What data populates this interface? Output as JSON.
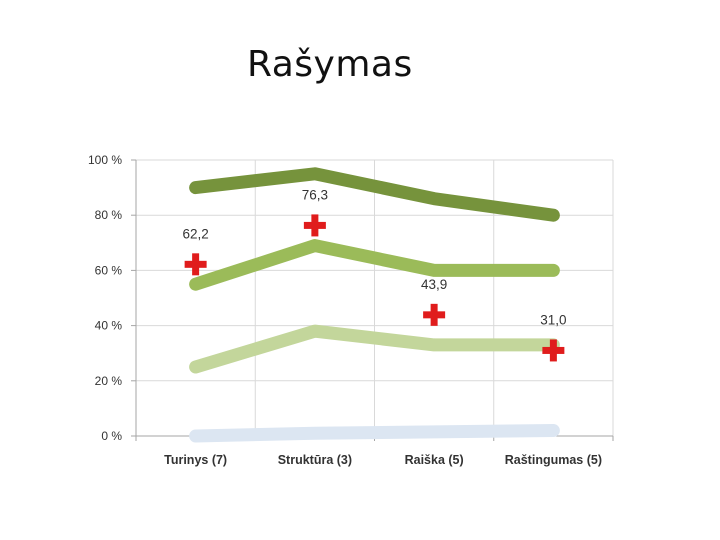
{
  "slide": {
    "title": "Rašymas"
  },
  "chart_data": {
    "type": "line",
    "categories": [
      "Turinys (7)",
      "Struktūra (3)",
      "Raiška (5)",
      "Raštingumas (5)"
    ],
    "ylim": [
      0,
      100
    ],
    "y_ticks": [
      0,
      20,
      40,
      60,
      80,
      100
    ],
    "y_tick_labels": [
      "0 %",
      "20 %",
      "40 %",
      "60 %",
      "80 %",
      "100 %"
    ],
    "grid": true,
    "series": [
      {
        "values": [
          90,
          95,
          86,
          80
        ],
        "color": "#76933c",
        "style": "thick-line"
      },
      {
        "values": [
          55,
          69,
          60,
          60
        ],
        "color": "#9bbb59",
        "style": "thick-line"
      },
      {
        "values": [
          25,
          38,
          33,
          33
        ],
        "color": "#c3d69b",
        "style": "thick-line"
      },
      {
        "values": [
          0,
          1,
          1.5,
          2
        ],
        "color": "#dce6f2",
        "style": "thick-line"
      },
      {
        "values": [
          62.2,
          76.3,
          43.9,
          31.0
        ],
        "color": "#e01c1c",
        "style": "cross-marker",
        "labels": [
          "62,2",
          "76,3",
          "43,9",
          "31,0"
        ]
      }
    ]
  }
}
